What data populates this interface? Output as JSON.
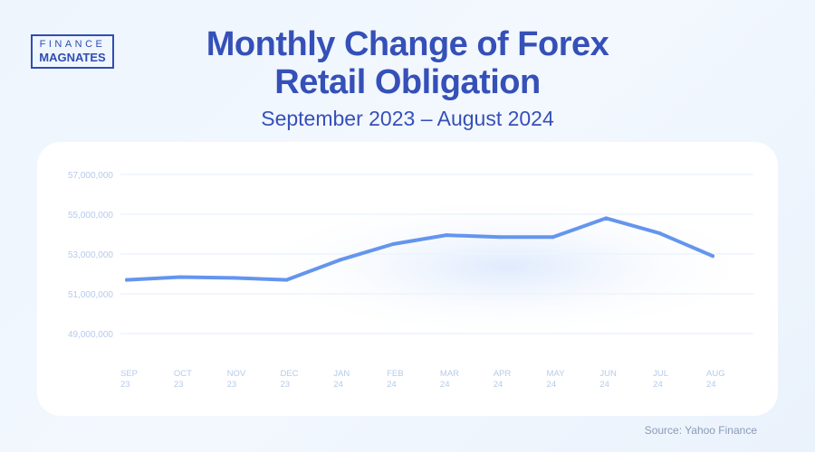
{
  "logo": {
    "line1": "FINANCE",
    "line2": "MAGNATES"
  },
  "title": "Monthly Change of Forex Retail Obligation",
  "subtitle": "September 2023  – August 2024",
  "source": "Source: Yahoo Finance",
  "chart_data": {
    "type": "line",
    "categories": [
      "SEP 23",
      "OCT 23",
      "NOV 23",
      "DEC 23",
      "JAN 24",
      "FEB 24",
      "MAR 24",
      "APR 24",
      "MAY 24",
      "JUN 24",
      "JUL 24",
      "AUG 24"
    ],
    "series": [
      {
        "values": [
          51700000,
          51840000,
          51800000,
          51700000,
          52700000,
          53500000,
          53950000,
          53850000,
          53850000,
          54800000,
          54050000,
          52900000
        ],
        "color": "#6495ee"
      }
    ],
    "yticks": [
      "57,000,000",
      "55,000,000",
      "53,000,000",
      "51,000,000",
      "49,000,000"
    ],
    "ylim": [
      49000000,
      57000000
    ],
    "grid": true,
    "legend": "none"
  }
}
